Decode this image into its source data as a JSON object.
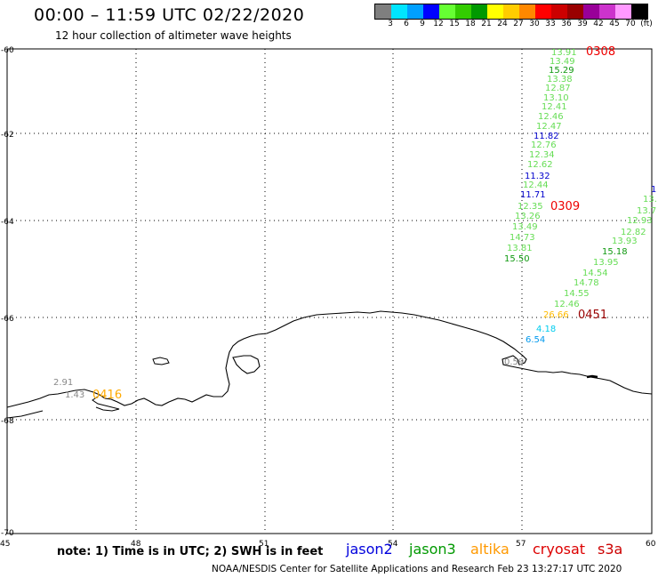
{
  "header": {
    "title": "00:00 – 11:59 UTC 02/22/2020",
    "subtitle": "12 hour collection of altimeter wave heights"
  },
  "scale": {
    "colors": [
      "#7f7f7f",
      "#00e5ff",
      "#00a0ff",
      "#0000ff",
      "#66ff33",
      "#33cc00",
      "#009900",
      "#ffff00",
      "#ffcc00",
      "#ff8800",
      "#ff0000",
      "#cc0000",
      "#990000",
      "#990099",
      "#cc33cc",
      "#ff99ff",
      "#000000"
    ],
    "labels": [
      "3",
      "6",
      "9",
      "12",
      "15",
      "18",
      "21",
      "24",
      "27",
      "30",
      "33",
      "36",
      "39",
      "42",
      "45",
      "70",
      "(ft)"
    ]
  },
  "axes": {
    "lon_ticks": [
      "45",
      "48",
      "51",
      "54",
      "57",
      "60"
    ],
    "lat_ticks": [
      "-60",
      "-62",
      "-64",
      "-66",
      "-68",
      "-70"
    ]
  },
  "observations": [
    {
      "text": "13.91",
      "color": "#66dd55"
    },
    {
      "text": "13.49",
      "color": "#66dd55"
    },
    {
      "text": "15.29",
      "color": "#119911"
    },
    {
      "text": "13.38",
      "color": "#66dd55"
    },
    {
      "text": "12.87",
      "color": "#66dd55"
    },
    {
      "text": "13.10",
      "color": "#66dd55"
    },
    {
      "text": "12.41",
      "color": "#66dd55"
    },
    {
      "text": "12.46",
      "color": "#66dd55"
    },
    {
      "text": "12.47",
      "color": "#66dd55"
    },
    {
      "text": "11.82",
      "color": "#0000cc"
    },
    {
      "text": "12.76",
      "color": "#66dd55"
    },
    {
      "text": "12.34",
      "color": "#66dd55"
    },
    {
      "text": "12.62",
      "color": "#66dd55"
    },
    {
      "text": "11.32",
      "color": "#0000cc"
    },
    {
      "text": "12.44",
      "color": "#66dd55"
    },
    {
      "text": "11.71",
      "color": "#0000cc"
    },
    {
      "text": "12.35",
      "color": "#66dd55"
    },
    {
      "text": "13.26",
      "color": "#66dd55"
    },
    {
      "text": "13.49",
      "color": "#66dd55"
    },
    {
      "text": "14.73",
      "color": "#66dd55"
    },
    {
      "text": "13.81",
      "color": "#66dd55"
    },
    {
      "text": "15.50",
      "color": "#119911"
    },
    {
      "text": "13.",
      "color": "#66dd55"
    },
    {
      "text": "13.7",
      "color": "#66dd55"
    },
    {
      "text": "12.93",
      "color": "#66dd55"
    },
    {
      "text": "12.82",
      "color": "#66dd55"
    },
    {
      "text": "13.93",
      "color": "#66dd55"
    },
    {
      "text": "15.18",
      "color": "#119911"
    },
    {
      "text": "13.95",
      "color": "#66dd55"
    },
    {
      "text": "14.54",
      "color": "#66dd55"
    },
    {
      "text": "14.78",
      "color": "#66dd55"
    },
    {
      "text": "14.55",
      "color": "#66dd55"
    },
    {
      "text": "12.46",
      "color": "#66dd55"
    },
    {
      "text": "26.66",
      "color": "#ffbb00"
    },
    {
      "text": "4.18",
      "color": "#00ccee"
    },
    {
      "text": "6.54",
      "color": "#0099ee"
    },
    {
      "text": "0.59",
      "color": "#888888"
    },
    {
      "text": "2.91",
      "color": "#888888"
    },
    {
      "text": "1.43",
      "color": "#888888"
    },
    {
      "text": "1",
      "color": "#0000cc"
    }
  ],
  "time_labels": [
    {
      "text": "0308",
      "color": "#ee0000"
    },
    {
      "text": "0309",
      "color": "#ee0000"
    },
    {
      "text": "0451",
      "color": "#990000"
    },
    {
      "text": "0416",
      "color": "#ffaa00"
    }
  ],
  "footer": {
    "note": "note: 1) Time is in UTC; 2) SWH is in feet",
    "legend": [
      {
        "label": "jason2",
        "color": "#0000dd"
      },
      {
        "label": "jason3",
        "color": "#009900"
      },
      {
        "label": "altika",
        "color": "#ff9900"
      },
      {
        "label": "cryosat",
        "color": "#dd0000"
      },
      {
        "label": "s3a",
        "color": "#cc0000"
      }
    ],
    "credit": "NOAA/NESDIS Center for Satellite Applications and Research   Feb 23 13:27:17 UTC 2020"
  }
}
